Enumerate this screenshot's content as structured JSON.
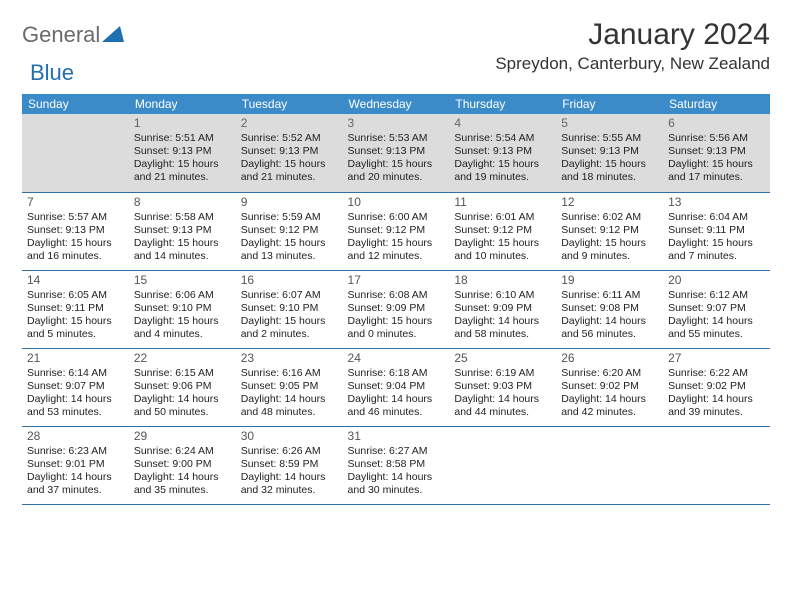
{
  "logo": {
    "part1": "General",
    "part2": "Blue"
  },
  "title": "January 2024",
  "location": "Spreydon, Canterbury, New Zealand",
  "colors": {
    "header_bg": "#3b8bc9",
    "row_border": "#2f6fa8",
    "first_row_bg": "#dcdcdc",
    "logo_gray": "#6b6b6b",
    "logo_blue": "#1f6fb2"
  },
  "weekdays": [
    "Sunday",
    "Monday",
    "Tuesday",
    "Wednesday",
    "Thursday",
    "Friday",
    "Saturday"
  ],
  "weeks": [
    [
      null,
      {
        "n": "1",
        "sr": "Sunrise: 5:51 AM",
        "ss": "Sunset: 9:13 PM",
        "d1": "Daylight: 15 hours",
        "d2": "and 21 minutes."
      },
      {
        "n": "2",
        "sr": "Sunrise: 5:52 AM",
        "ss": "Sunset: 9:13 PM",
        "d1": "Daylight: 15 hours",
        "d2": "and 21 minutes."
      },
      {
        "n": "3",
        "sr": "Sunrise: 5:53 AM",
        "ss": "Sunset: 9:13 PM",
        "d1": "Daylight: 15 hours",
        "d2": "and 20 minutes."
      },
      {
        "n": "4",
        "sr": "Sunrise: 5:54 AM",
        "ss": "Sunset: 9:13 PM",
        "d1": "Daylight: 15 hours",
        "d2": "and 19 minutes."
      },
      {
        "n": "5",
        "sr": "Sunrise: 5:55 AM",
        "ss": "Sunset: 9:13 PM",
        "d1": "Daylight: 15 hours",
        "d2": "and 18 minutes."
      },
      {
        "n": "6",
        "sr": "Sunrise: 5:56 AM",
        "ss": "Sunset: 9:13 PM",
        "d1": "Daylight: 15 hours",
        "d2": "and 17 minutes."
      }
    ],
    [
      {
        "n": "7",
        "sr": "Sunrise: 5:57 AM",
        "ss": "Sunset: 9:13 PM",
        "d1": "Daylight: 15 hours",
        "d2": "and 16 minutes."
      },
      {
        "n": "8",
        "sr": "Sunrise: 5:58 AM",
        "ss": "Sunset: 9:13 PM",
        "d1": "Daylight: 15 hours",
        "d2": "and 14 minutes."
      },
      {
        "n": "9",
        "sr": "Sunrise: 5:59 AM",
        "ss": "Sunset: 9:12 PM",
        "d1": "Daylight: 15 hours",
        "d2": "and 13 minutes."
      },
      {
        "n": "10",
        "sr": "Sunrise: 6:00 AM",
        "ss": "Sunset: 9:12 PM",
        "d1": "Daylight: 15 hours",
        "d2": "and 12 minutes."
      },
      {
        "n": "11",
        "sr": "Sunrise: 6:01 AM",
        "ss": "Sunset: 9:12 PM",
        "d1": "Daylight: 15 hours",
        "d2": "and 10 minutes."
      },
      {
        "n": "12",
        "sr": "Sunrise: 6:02 AM",
        "ss": "Sunset: 9:12 PM",
        "d1": "Daylight: 15 hours",
        "d2": "and 9 minutes."
      },
      {
        "n": "13",
        "sr": "Sunrise: 6:04 AM",
        "ss": "Sunset: 9:11 PM",
        "d1": "Daylight: 15 hours",
        "d2": "and 7 minutes."
      }
    ],
    [
      {
        "n": "14",
        "sr": "Sunrise: 6:05 AM",
        "ss": "Sunset: 9:11 PM",
        "d1": "Daylight: 15 hours",
        "d2": "and 5 minutes."
      },
      {
        "n": "15",
        "sr": "Sunrise: 6:06 AM",
        "ss": "Sunset: 9:10 PM",
        "d1": "Daylight: 15 hours",
        "d2": "and 4 minutes."
      },
      {
        "n": "16",
        "sr": "Sunrise: 6:07 AM",
        "ss": "Sunset: 9:10 PM",
        "d1": "Daylight: 15 hours",
        "d2": "and 2 minutes."
      },
      {
        "n": "17",
        "sr": "Sunrise: 6:08 AM",
        "ss": "Sunset: 9:09 PM",
        "d1": "Daylight: 15 hours",
        "d2": "and 0 minutes."
      },
      {
        "n": "18",
        "sr": "Sunrise: 6:10 AM",
        "ss": "Sunset: 9:09 PM",
        "d1": "Daylight: 14 hours",
        "d2": "and 58 minutes."
      },
      {
        "n": "19",
        "sr": "Sunrise: 6:11 AM",
        "ss": "Sunset: 9:08 PM",
        "d1": "Daylight: 14 hours",
        "d2": "and 56 minutes."
      },
      {
        "n": "20",
        "sr": "Sunrise: 6:12 AM",
        "ss": "Sunset: 9:07 PM",
        "d1": "Daylight: 14 hours",
        "d2": "and 55 minutes."
      }
    ],
    [
      {
        "n": "21",
        "sr": "Sunrise: 6:14 AM",
        "ss": "Sunset: 9:07 PM",
        "d1": "Daylight: 14 hours",
        "d2": "and 53 minutes."
      },
      {
        "n": "22",
        "sr": "Sunrise: 6:15 AM",
        "ss": "Sunset: 9:06 PM",
        "d1": "Daylight: 14 hours",
        "d2": "and 50 minutes."
      },
      {
        "n": "23",
        "sr": "Sunrise: 6:16 AM",
        "ss": "Sunset: 9:05 PM",
        "d1": "Daylight: 14 hours",
        "d2": "and 48 minutes."
      },
      {
        "n": "24",
        "sr": "Sunrise: 6:18 AM",
        "ss": "Sunset: 9:04 PM",
        "d1": "Daylight: 14 hours",
        "d2": "and 46 minutes."
      },
      {
        "n": "25",
        "sr": "Sunrise: 6:19 AM",
        "ss": "Sunset: 9:03 PM",
        "d1": "Daylight: 14 hours",
        "d2": "and 44 minutes."
      },
      {
        "n": "26",
        "sr": "Sunrise: 6:20 AM",
        "ss": "Sunset: 9:02 PM",
        "d1": "Daylight: 14 hours",
        "d2": "and 42 minutes."
      },
      {
        "n": "27",
        "sr": "Sunrise: 6:22 AM",
        "ss": "Sunset: 9:02 PM",
        "d1": "Daylight: 14 hours",
        "d2": "and 39 minutes."
      }
    ],
    [
      {
        "n": "28",
        "sr": "Sunrise: 6:23 AM",
        "ss": "Sunset: 9:01 PM",
        "d1": "Daylight: 14 hours",
        "d2": "and 37 minutes."
      },
      {
        "n": "29",
        "sr": "Sunrise: 6:24 AM",
        "ss": "Sunset: 9:00 PM",
        "d1": "Daylight: 14 hours",
        "d2": "and 35 minutes."
      },
      {
        "n": "30",
        "sr": "Sunrise: 6:26 AM",
        "ss": "Sunset: 8:59 PM",
        "d1": "Daylight: 14 hours",
        "d2": "and 32 minutes."
      },
      {
        "n": "31",
        "sr": "Sunrise: 6:27 AM",
        "ss": "Sunset: 8:58 PM",
        "d1": "Daylight: 14 hours",
        "d2": "and 30 minutes."
      },
      null,
      null,
      null
    ]
  ]
}
